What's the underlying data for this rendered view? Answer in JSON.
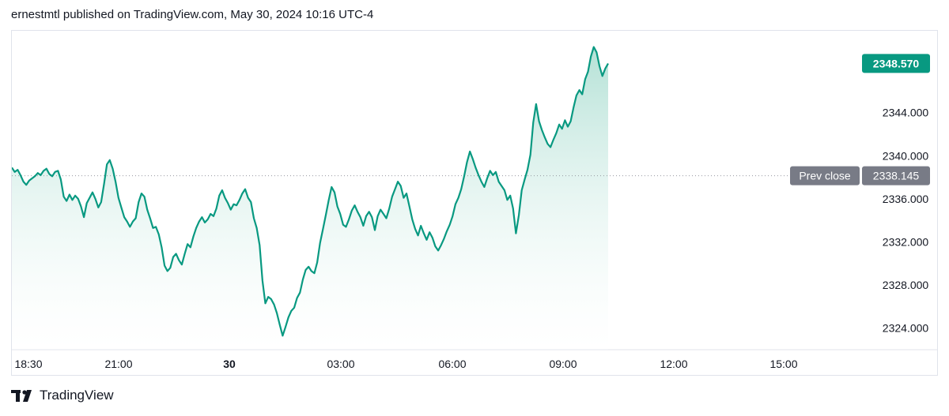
{
  "header": {
    "text": "ernestmtl published on TradingView.com, May 30, 2024 10:16 UTC-4"
  },
  "footer": {
    "brand": "TradingView",
    "logo_icon": "tradingview-logo-icon"
  },
  "colors": {
    "line": "#089981",
    "area_top": "#a7dccf",
    "area_bottom": "#ffffff",
    "price_label_bg": "#089981",
    "prev_close_bg": "#787b86",
    "grid": "#f0f3fa",
    "axis_text": "#131722"
  },
  "chart_data": {
    "type": "area",
    "series": [
      {
        "values": [
          2338.9,
          2338.5,
          2338.7,
          2338.2,
          2337.6,
          2337.3,
          2337.7,
          2337.9,
          2338.1,
          2338.4,
          2338.2,
          2338.6,
          2338.8,
          2338.3,
          2338.1,
          2338.5,
          2338.6,
          2337.8,
          2336.2,
          2335.8,
          2336.4,
          2335.9,
          2336.3,
          2336.0,
          2335.3,
          2334.3,
          2335.6,
          2336.1,
          2336.6,
          2336.0,
          2335.2,
          2335.7,
          2337.4,
          2339.2,
          2339.6,
          2338.8,
          2337.6,
          2336.1,
          2335.2,
          2334.3,
          2333.9,
          2333.4,
          2333.9,
          2334.2,
          2335.7,
          2336.5,
          2336.2,
          2335.0,
          2334.2,
          2333.3,
          2333.4,
          2332.7,
          2331.5,
          2329.8,
          2329.3,
          2329.6,
          2330.6,
          2330.9,
          2330.3,
          2329.9,
          2330.9,
          2331.8,
          2331.5,
          2332.5,
          2333.3,
          2333.9,
          2334.3,
          2333.8,
          2334.1,
          2334.6,
          2334.4,
          2335.1,
          2336.3,
          2336.8,
          2336.1,
          2335.6,
          2335.0,
          2335.5,
          2335.4,
          2335.9,
          2336.5,
          2336.9,
          2336.1,
          2335.7,
          2334.2,
          2333.3,
          2331.7,
          2328.4,
          2326.3,
          2326.9,
          2326.7,
          2326.2,
          2325.4,
          2324.3,
          2323.3,
          2324.1,
          2325.0,
          2325.6,
          2325.9,
          2326.8,
          2327.3,
          2328.5,
          2329.4,
          2329.7,
          2329.3,
          2329.1,
          2330.1,
          2331.9,
          2333.2,
          2334.5,
          2335.9,
          2337.1,
          2336.6,
          2335.3,
          2334.6,
          2333.6,
          2333.4,
          2334.1,
          2334.9,
          2335.4,
          2334.8,
          2334.3,
          2333.5,
          2334.4,
          2334.8,
          2334.3,
          2333.1,
          2334.4,
          2335.0,
          2334.6,
          2334.2,
          2335.1,
          2336.2,
          2336.9,
          2337.6,
          2337.2,
          2336.1,
          2336.5,
          2335.3,
          2334.1,
          2333.2,
          2332.6,
          2333.5,
          2332.8,
          2332.2,
          2332.9,
          2332.4,
          2331.6,
          2331.2,
          2331.7,
          2332.3,
          2333.0,
          2333.6,
          2334.4,
          2335.5,
          2336.1,
          2336.9,
          2338.1,
          2339.4,
          2340.4,
          2339.7,
          2338.9,
          2338.2,
          2337.6,
          2337.1,
          2337.9,
          2338.6,
          2338.2,
          2338.5,
          2337.6,
          2337.2,
          2336.8,
          2335.9,
          2336.3,
          2335.1,
          2332.8,
          2334.5,
          2336.8,
          2337.8,
          2338.7,
          2340.1,
          2343.1,
          2344.8,
          2343.2,
          2342.4,
          2341.7,
          2341.1,
          2340.8,
          2341.5,
          2342.1,
          2342.9,
          2342.5,
          2343.3,
          2342.7,
          2343.2,
          2344.5,
          2345.6,
          2346.1,
          2345.7,
          2347.1,
          2347.8,
          2349.2,
          2350.1,
          2349.6,
          2348.3,
          2347.4,
          2348.1,
          2348.57
        ]
      }
    ],
    "x_axis_labels": [
      "18:30",
      "21:00",
      "30",
      "03:00",
      "06:00",
      "09:00",
      "12:00",
      "15:00"
    ],
    "x_axis_bold": [
      "30"
    ],
    "y_ticks": [
      "2344.000",
      "2340.000",
      "2336.000",
      "2332.000",
      "2328.000",
      "2324.000"
    ],
    "ylim": [
      2322.0,
      2351.6
    ],
    "last_price": {
      "value": 2348.57,
      "label": "2348.570"
    },
    "prev_close": {
      "value": 2338.145,
      "label": "2338.145",
      "text": "Prev close"
    },
    "grid": false
  }
}
